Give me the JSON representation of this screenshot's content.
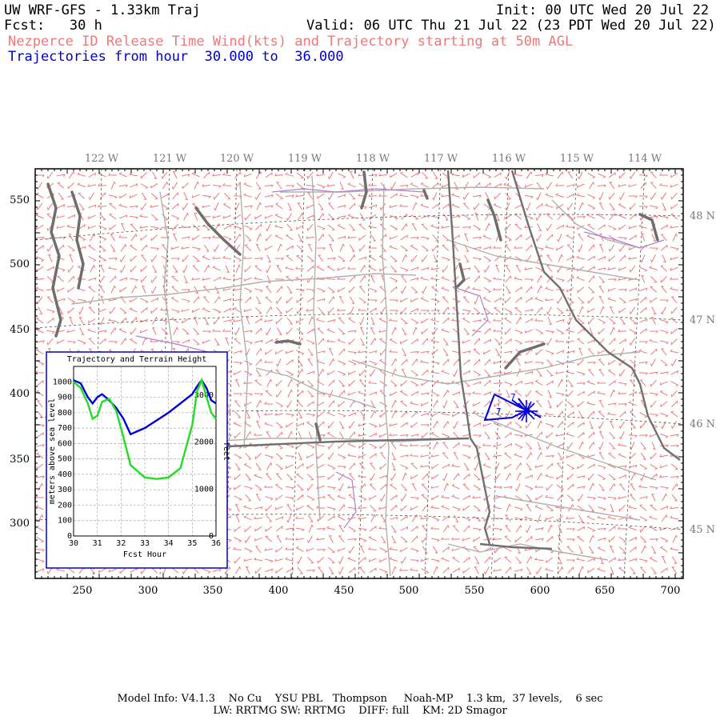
{
  "header": {
    "model": "UW WRF-GFS - 1.33km Traj",
    "init": "Init: 00 UTC Wed 20 Jul 22",
    "fcst": "Fcst:   30 h",
    "valid": "Valid: 06 UTC Thu 21 Jul 22 (23 PDT Wed 20 Jul 22)",
    "title": "Nezperce ID Release Time Wind(kts) and Trajectory starting at 50m AGL",
    "traj_range": "Trajectories from hour  30.000 to  36.000"
  },
  "map": {
    "top_labels": [
      "122 W",
      "121 W",
      "120 W",
      "119 W",
      "118 W",
      "117 W",
      "116 W",
      "115 W",
      "114 W"
    ],
    "right_labels": [
      "48 N",
      "47 N",
      "46 N",
      "45 N"
    ],
    "left_labels": [
      "550",
      "500",
      "450",
      "400",
      "350",
      "300"
    ],
    "bottom_labels": [
      "250",
      "300",
      "350",
      "400",
      "450",
      "500",
      "550",
      "600",
      "650",
      "700"
    ],
    "trajectory_labels": [
      "7",
      "7"
    ],
    "colors": {
      "wind_barbs": "#f07878",
      "trajectory": "#0000dd",
      "county_lines": "#b0b0b0",
      "state_lines": "#707070",
      "water": "#6e6e6e",
      "purple_lines": "#b080d0"
    }
  },
  "inset": {
    "title": "Trajectory and Terrain Height",
    "ylabel_left": "meters above sea level",
    "ylabel_right": "feet",
    "xlabel": "Fcst Hour",
    "colors": {
      "trajectory": "#0000dd",
      "terrain": "#22dd22"
    }
  },
  "chart_data": {
    "type": "line",
    "title": "Trajectory and Terrain Height",
    "xlabel": "Fcst Hour",
    "ylabel": "meters above sea level",
    "ylabel_right": "feet",
    "xlim": [
      30,
      36
    ],
    "ylim": [
      0,
      1100
    ],
    "x_ticks": [
      "30",
      "31",
      "32",
      "33",
      "34",
      "35",
      "36"
    ],
    "y_ticks": [
      "0",
      "100",
      "200",
      "300",
      "400",
      "500",
      "600",
      "700",
      "800",
      "900",
      "1000"
    ],
    "y_right_ticks": [
      "0",
      "1000",
      "2000",
      "3000"
    ],
    "grid": true,
    "series": [
      {
        "x": [
          30,
          30.3,
          30.6,
          30.8,
          31,
          31.2,
          31.5,
          31.8,
          32.1,
          32.4,
          32.7,
          33,
          33.5,
          34,
          34.5,
          35,
          35.2,
          35.4,
          35.6,
          35.8,
          36
        ],
        "y": [
          1010,
          990,
          900,
          860,
          900,
          920,
          880,
          830,
          760,
          660,
          680,
          700,
          750,
          800,
          860,
          920,
          970,
          1010,
          960,
          880,
          860
        ]
      },
      {
        "x": [
          30,
          30.3,
          30.6,
          30.8,
          31,
          31.2,
          31.5,
          31.8,
          32.1,
          32.4,
          32.7,
          33,
          33.5,
          34,
          34.5,
          35,
          35.2,
          35.4,
          35.6,
          35.8,
          36
        ],
        "y": [
          1000,
          960,
          860,
          760,
          780,
          870,
          890,
          810,
          640,
          460,
          420,
          380,
          370,
          380,
          440,
          720,
          940,
          1010,
          900,
          800,
          760
        ]
      }
    ]
  },
  "footer": {
    "line1": "Model Info: V4.1.3    No Cu    YSU PBL   Thompson     Noah-MP    1.3 km,  37 levels,    6 sec",
    "line2": "LW: RRTMG SW: RRTMG    DIFF: full    KM: 2D Smagor"
  }
}
